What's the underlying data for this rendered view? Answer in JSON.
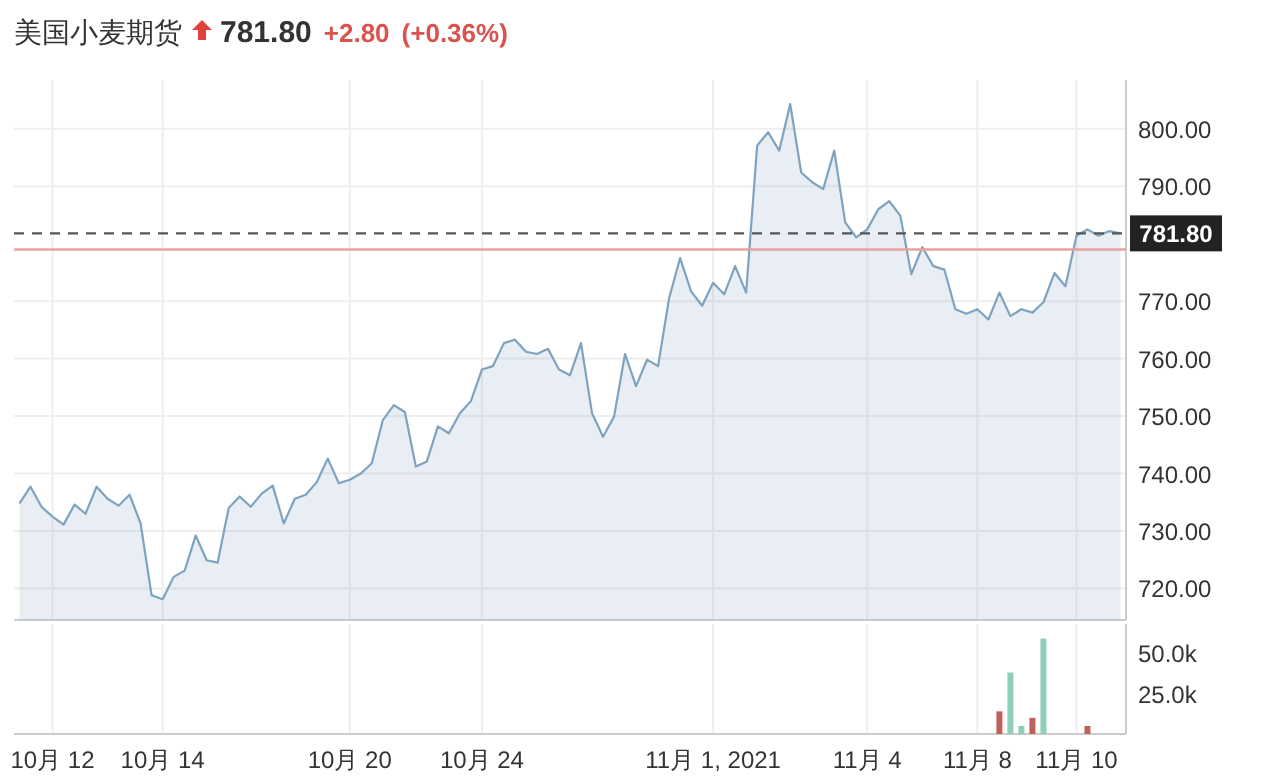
{
  "chart_data": [
    {
      "type": "area",
      "title": "美国小麦期货",
      "annotations": [
        "781.80",
        "+2.80",
        "(+0.36%)"
      ],
      "categories": [
        null,
        null,
        null,
        "10月 12",
        null,
        null,
        null,
        null,
        null,
        null,
        null,
        null,
        null,
        "10月 14",
        null,
        null,
        null,
        null,
        null,
        null,
        null,
        null,
        null,
        null,
        null,
        null,
        null,
        null,
        null,
        null,
        "10月 20",
        null,
        null,
        null,
        null,
        null,
        null,
        null,
        null,
        null,
        null,
        null,
        "10月 24",
        null,
        null,
        null,
        null,
        null,
        null,
        null,
        null,
        null,
        null,
        null,
        null,
        null,
        null,
        null,
        null,
        null,
        null,
        null,
        null,
        "11月 1, 2021",
        null,
        null,
        null,
        null,
        null,
        null,
        null,
        null,
        null,
        null,
        null,
        null,
        null,
        "11月 4",
        null,
        null,
        null,
        null,
        null,
        null,
        null,
        null,
        null,
        "11月 8",
        null,
        null,
        null,
        null,
        null,
        null,
        null,
        null,
        "11月 10",
        null,
        null,
        null,
        null
      ],
      "series": [
        {
          "color": "#7fa3bf",
          "values": [
            734.8,
            737.7,
            734.2,
            732.5,
            731.1,
            734.6,
            733.0,
            737.7,
            735.6,
            734.4,
            736.3,
            731.3,
            718.8,
            718.1,
            722.0,
            723.1,
            729.2,
            724.9,
            724.5,
            734.0,
            736.0,
            734.2,
            736.5,
            737.9,
            731.3,
            735.6,
            736.3,
            738.5,
            742.6,
            738.3,
            738.9,
            740.0,
            741.8,
            749.3,
            751.9,
            750.7,
            741.2,
            742.1,
            748.2,
            747.0,
            750.5,
            752.6,
            758.1,
            758.7,
            762.7,
            763.3,
            761.2,
            760.8,
            761.7,
            758.1,
            757.1,
            762.7,
            750.5,
            746.4,
            749.9,
            760.8,
            755.2,
            759.8,
            758.7,
            770.5,
            777.5,
            771.7,
            769.2,
            773.2,
            771.2,
            776.1,
            771.5,
            797.1,
            799.4,
            796.2,
            804.3,
            792.4,
            790.7,
            789.5,
            796.2,
            783.7,
            781.1,
            782.5,
            786.0,
            787.4,
            784.9,
            774.7,
            779.4,
            776.1,
            775.5,
            768.6,
            767.8,
            768.6,
            766.8,
            771.5,
            767.4,
            768.6,
            768.0,
            769.8,
            774.9,
            772.6,
            781.4,
            782.5,
            781.4,
            782.2,
            781.8
          ]
        }
      ],
      "ylim": [
        714.5,
        808.5
      ],
      "yticks": [
        {
          "value": 720,
          "label": "720.00"
        },
        {
          "value": 730,
          "label": "730.00"
        },
        {
          "value": 740,
          "label": "740.00"
        },
        {
          "value": 750,
          "label": "750.00"
        },
        {
          "value": 760,
          "label": "760.00"
        },
        {
          "value": 770,
          "label": "770.00"
        },
        {
          "value": 790,
          "label": "790.00"
        },
        {
          "value": 800,
          "label": "800.00"
        }
      ],
      "ref_lines": [
        {
          "axis": "y",
          "value": 781.8,
          "label": "781.80",
          "color": "#555555",
          "line_style": "dashed"
        },
        {
          "axis": "y",
          "value": 779.0,
          "color": "#e8a0a0",
          "line_style": "solid"
        }
      ],
      "grid": true
    },
    {
      "type": "bar",
      "tick_labels": "y",
      "categories": [
        null,
        null,
        null,
        null,
        null,
        null,
        null,
        null,
        null,
        null,
        null,
        null,
        null,
        null,
        null,
        null,
        null,
        null,
        null,
        null,
        null,
        null,
        null,
        null,
        null,
        null,
        null,
        null,
        null,
        null,
        null,
        null,
        null,
        null,
        null,
        null,
        null,
        null,
        null,
        null,
        null,
        null,
        null,
        null,
        null,
        null,
        null,
        null,
        null,
        null,
        null,
        null,
        null,
        null,
        null,
        null,
        null,
        null,
        null,
        null,
        null,
        null,
        null,
        null,
        null,
        null,
        null,
        null,
        null,
        null,
        null,
        null,
        null,
        null,
        null,
        null,
        null,
        null,
        null,
        null,
        null,
        null,
        null,
        null,
        null,
        null,
        null,
        null,
        null,
        null,
        null,
        null,
        null,
        null,
        null,
        null,
        null,
        null,
        null,
        null,
        null
      ],
      "values": [
        null,
        null,
        null,
        null,
        null,
        null,
        null,
        null,
        null,
        null,
        null,
        null,
        null,
        null,
        null,
        null,
        null,
        null,
        null,
        null,
        null,
        null,
        null,
        null,
        null,
        null,
        null,
        null,
        null,
        null,
        null,
        null,
        null,
        null,
        null,
        null,
        null,
        null,
        null,
        null,
        null,
        null,
        null,
        null,
        null,
        null,
        null,
        null,
        null,
        null,
        null,
        null,
        null,
        null,
        null,
        null,
        null,
        null,
        null,
        null,
        null,
        null,
        null,
        null,
        null,
        null,
        null,
        null,
        null,
        null,
        null,
        null,
        null,
        null,
        null,
        null,
        null,
        null,
        null,
        null,
        null,
        null,
        null,
        null,
        null,
        null,
        null,
        null,
        null,
        14000,
        38000,
        5000,
        10000,
        59000,
        null,
        null,
        null,
        5000,
        null,
        null,
        null
      ],
      "colors": [
        null,
        null,
        null,
        null,
        null,
        null,
        null,
        null,
        null,
        null,
        null,
        null,
        null,
        null,
        null,
        null,
        null,
        null,
        null,
        null,
        null,
        null,
        null,
        null,
        null,
        null,
        null,
        null,
        null,
        null,
        null,
        null,
        null,
        null,
        null,
        null,
        null,
        null,
        null,
        null,
        null,
        null,
        null,
        null,
        null,
        null,
        null,
        null,
        null,
        null,
        null,
        null,
        null,
        null,
        null,
        null,
        null,
        null,
        null,
        null,
        null,
        null,
        null,
        null,
        null,
        null,
        null,
        null,
        null,
        null,
        null,
        null,
        null,
        null,
        null,
        null,
        null,
        null,
        null,
        null,
        null,
        null,
        null,
        null,
        null,
        null,
        null,
        null,
        null,
        "#c0605a",
        "#8fcfb5",
        "#8fcfb5",
        "#c0605a",
        "#8fcfb5",
        null,
        null,
        null,
        "#c0605a",
        null,
        null,
        null
      ],
      "ylim": [
        0,
        68000
      ],
      "yticks": [
        {
          "value": 25000,
          "label": "25.0k"
        },
        {
          "value": 50000,
          "label": "50.0k"
        }
      ],
      "grid": "x"
    }
  ]
}
